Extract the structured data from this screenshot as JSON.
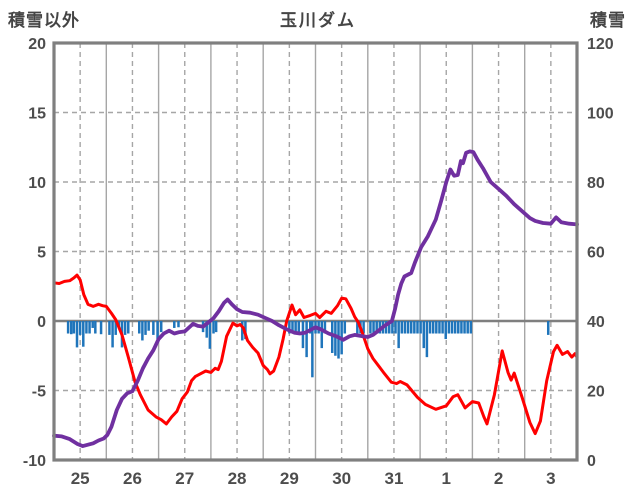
{
  "chart": {
    "title": "玉川ダム",
    "left_axis_label": "積雪以外",
    "right_axis_label": "積雪"
  },
  "chart_data": {
    "type": "line",
    "title": "玉川ダム",
    "left_axis": {
      "label": "積雪以外",
      "range": [
        -10,
        20
      ],
      "ticks": [
        20,
        15,
        10,
        5,
        0,
        -5,
        -10
      ]
    },
    "right_axis": {
      "label": "積雪",
      "range": [
        0,
        120
      ],
      "ticks": [
        120,
        100,
        80,
        60,
        40,
        20,
        0
      ]
    },
    "x_axis": {
      "labels": [
        "25",
        "26",
        "27",
        "28",
        "29",
        "30",
        "31",
        "1",
        "2",
        "3"
      ],
      "range": [
        0,
        10
      ]
    },
    "grid": {
      "solid_zero_line": true,
      "dashed_horizontal": [
        15,
        10,
        5,
        -5
      ],
      "solid_vertical_day_lines": true,
      "dashed_halfday_lines": true
    },
    "colors": {
      "temperature": "#ff0000",
      "snow_depth": "#7030a0",
      "precipitation": "#1f75bb",
      "frame": "#7f7f7f",
      "grid": "#a6a6a6",
      "text": "#4d4d4d"
    },
    "series": [
      {
        "name": "temperature",
        "axis": "left",
        "color": "#ff0000",
        "width": 3,
        "points": [
          [
            0,
            2.75
          ],
          [
            0.1,
            2.7
          ],
          [
            0.2,
            2.85
          ],
          [
            0.3,
            2.9
          ],
          [
            0.38,
            3.1
          ],
          [
            0.44,
            3.3
          ],
          [
            0.5,
            2.95
          ],
          [
            0.57,
            1.9
          ],
          [
            0.65,
            1.2
          ],
          [
            0.75,
            1.05
          ],
          [
            0.85,
            1.2
          ],
          [
            0.93,
            1.1
          ],
          [
            1.0,
            1.05
          ],
          [
            1.1,
            0.55
          ],
          [
            1.18,
            0.1
          ],
          [
            1.3,
            -1.0
          ],
          [
            1.42,
            -2.6
          ],
          [
            1.55,
            -4.4
          ],
          [
            1.65,
            -5.3
          ],
          [
            1.8,
            -6.4
          ],
          [
            1.95,
            -6.9
          ],
          [
            2.05,
            -7.1
          ],
          [
            2.15,
            -7.4
          ],
          [
            2.25,
            -6.9
          ],
          [
            2.35,
            -6.5
          ],
          [
            2.45,
            -5.6
          ],
          [
            2.55,
            -5.1
          ],
          [
            2.63,
            -4.3
          ],
          [
            2.7,
            -4.0
          ],
          [
            2.8,
            -3.8
          ],
          [
            2.9,
            -3.6
          ],
          [
            3.0,
            -3.7
          ],
          [
            3.08,
            -3.4
          ],
          [
            3.14,
            -3.5
          ],
          [
            3.2,
            -2.9
          ],
          [
            3.3,
            -1.1
          ],
          [
            3.42,
            -0.15
          ],
          [
            3.5,
            -0.35
          ],
          [
            3.56,
            -0.25
          ],
          [
            3.62,
            -0.5
          ],
          [
            3.7,
            -1.4
          ],
          [
            3.8,
            -1.9
          ],
          [
            3.9,
            -2.3
          ],
          [
            4.0,
            -3.2
          ],
          [
            4.08,
            -3.5
          ],
          [
            4.13,
            -3.8
          ],
          [
            4.2,
            -3.6
          ],
          [
            4.3,
            -2.6
          ],
          [
            4.38,
            -1.3
          ],
          [
            4.45,
            0.0
          ],
          [
            4.55,
            1.15
          ],
          [
            4.62,
            0.45
          ],
          [
            4.7,
            0.8
          ],
          [
            4.78,
            0.25
          ],
          [
            4.9,
            0.4
          ],
          [
            5.0,
            0.55
          ],
          [
            5.08,
            0.25
          ],
          [
            5.2,
            0.7
          ],
          [
            5.3,
            0.55
          ],
          [
            5.42,
            1.1
          ],
          [
            5.5,
            1.65
          ],
          [
            5.58,
            1.6
          ],
          [
            5.68,
            0.9
          ],
          [
            5.75,
            0.3
          ],
          [
            5.82,
            -0.1
          ],
          [
            5.9,
            -0.9
          ],
          [
            6.0,
            -2.0
          ],
          [
            6.1,
            -2.7
          ],
          [
            6.3,
            -3.7
          ],
          [
            6.45,
            -4.4
          ],
          [
            6.55,
            -4.5
          ],
          [
            6.62,
            -4.35
          ],
          [
            6.75,
            -4.6
          ],
          [
            6.95,
            -5.5
          ],
          [
            7.1,
            -6.0
          ],
          [
            7.3,
            -6.35
          ],
          [
            7.5,
            -6.1
          ],
          [
            7.63,
            -5.45
          ],
          [
            7.72,
            -5.3
          ],
          [
            7.86,
            -6.25
          ],
          [
            8.0,
            -5.8
          ],
          [
            8.12,
            -5.9
          ],
          [
            8.22,
            -6.9
          ],
          [
            8.28,
            -7.4
          ],
          [
            8.42,
            -5.3
          ],
          [
            8.57,
            -2.15
          ],
          [
            8.68,
            -3.7
          ],
          [
            8.74,
            -4.25
          ],
          [
            8.8,
            -3.75
          ],
          [
            8.95,
            -5.5
          ],
          [
            9.1,
            -7.3
          ],
          [
            9.2,
            -8.1
          ],
          [
            9.3,
            -7.2
          ],
          [
            9.42,
            -4.3
          ],
          [
            9.55,
            -2.2
          ],
          [
            9.62,
            -1.75
          ],
          [
            9.72,
            -2.4
          ],
          [
            9.82,
            -2.2
          ],
          [
            9.9,
            -2.6
          ],
          [
            9.96,
            -2.35
          ],
          [
            10.0,
            -2.6
          ]
        ]
      },
      {
        "name": "snow_depth",
        "axis": "right",
        "color": "#7030a0",
        "width": 3.8,
        "points": [
          [
            0,
            7.0
          ],
          [
            0.15,
            6.8
          ],
          [
            0.3,
            6.0
          ],
          [
            0.45,
            4.6
          ],
          [
            0.55,
            4.0
          ],
          [
            0.65,
            4.4
          ],
          [
            0.75,
            4.8
          ],
          [
            0.85,
            5.6
          ],
          [
            0.95,
            6.2
          ],
          [
            1.02,
            7.2
          ],
          [
            1.1,
            9.6
          ],
          [
            1.2,
            14.4
          ],
          [
            1.3,
            17.6
          ],
          [
            1.4,
            19.2
          ],
          [
            1.5,
            19.8
          ],
          [
            1.6,
            22.8
          ],
          [
            1.7,
            26.4
          ],
          [
            1.8,
            29.2
          ],
          [
            1.9,
            31.6
          ],
          [
            2.0,
            34.8
          ],
          [
            2.1,
            36.4
          ],
          [
            2.2,
            37.2
          ],
          [
            2.3,
            36.4
          ],
          [
            2.4,
            36.8
          ],
          [
            2.5,
            37.0
          ],
          [
            2.6,
            38.4
          ],
          [
            2.66,
            39.2
          ],
          [
            2.75,
            38.6
          ],
          [
            2.85,
            38.4
          ],
          [
            2.95,
            39.6
          ],
          [
            3.05,
            40.8
          ],
          [
            3.15,
            42.8
          ],
          [
            3.25,
            45.2
          ],
          [
            3.32,
            46.2
          ],
          [
            3.4,
            44.8
          ],
          [
            3.5,
            43.4
          ],
          [
            3.6,
            42.6
          ],
          [
            3.75,
            42.4
          ],
          [
            3.9,
            41.8
          ],
          [
            4.05,
            40.8
          ],
          [
            4.17,
            40.0
          ],
          [
            4.3,
            38.8
          ],
          [
            4.45,
            37.6
          ],
          [
            4.6,
            36.6
          ],
          [
            4.7,
            36.4
          ],
          [
            4.8,
            36.6
          ],
          [
            4.9,
            37.4
          ],
          [
            5.0,
            38.2
          ],
          [
            5.1,
            37.6
          ],
          [
            5.25,
            36.4
          ],
          [
            5.4,
            35.6
          ],
          [
            5.53,
            34.6
          ],
          [
            5.65,
            35.6
          ],
          [
            5.75,
            36.0
          ],
          [
            5.9,
            35.6
          ],
          [
            6.0,
            35.4
          ],
          [
            6.1,
            36.0
          ],
          [
            6.2,
            37.2
          ],
          [
            6.3,
            38.4
          ],
          [
            6.46,
            40.0
          ],
          [
            6.52,
            43.4
          ],
          [
            6.58,
            47.6
          ],
          [
            6.64,
            50.8
          ],
          [
            6.7,
            52.8
          ],
          [
            6.83,
            53.8
          ],
          [
            6.9,
            56.8
          ],
          [
            7.02,
            61.2
          ],
          [
            7.15,
            64.4
          ],
          [
            7.3,
            69.2
          ],
          [
            7.4,
            74.4
          ],
          [
            7.5,
            80.0
          ],
          [
            7.58,
            83.6
          ],
          [
            7.65,
            81.8
          ],
          [
            7.72,
            82.0
          ],
          [
            7.78,
            86.0
          ],
          [
            7.82,
            85.4
          ],
          [
            7.88,
            88.4
          ],
          [
            7.95,
            88.8
          ],
          [
            8.02,
            88.6
          ],
          [
            8.1,
            86.4
          ],
          [
            8.2,
            84.0
          ],
          [
            8.35,
            80.0
          ],
          [
            8.5,
            78.0
          ],
          [
            8.65,
            76.0
          ],
          [
            8.8,
            73.6
          ],
          [
            8.95,
            71.6
          ],
          [
            9.1,
            69.6
          ],
          [
            9.2,
            68.8
          ],
          [
            9.35,
            68.2
          ],
          [
            9.5,
            68.0
          ],
          [
            9.6,
            69.8
          ],
          [
            9.7,
            68.4
          ],
          [
            9.85,
            68.0
          ],
          [
            10.0,
            67.8
          ]
        ]
      }
    ],
    "bars": {
      "name": "precipitation",
      "axis": "left",
      "color": "#1f75bb",
      "note": "bars hang downward from the zero line; value = depth below 0",
      "data": [
        [
          0.27,
          0.9
        ],
        [
          0.33,
          0.95
        ],
        [
          0.38,
          0.9
        ],
        [
          0.44,
          1.9
        ],
        [
          0.5,
          1.0
        ],
        [
          0.56,
          1.85
        ],
        [
          0.62,
          0.9
        ],
        [
          0.68,
          0.9
        ],
        [
          0.74,
          0.5
        ],
        [
          0.79,
          0.9
        ],
        [
          0.9,
          0.95
        ],
        [
          1.06,
          1.0
        ],
        [
          1.12,
          1.9
        ],
        [
          1.18,
          1.0
        ],
        [
          1.24,
          0.5
        ],
        [
          1.3,
          1.9
        ],
        [
          1.36,
          1.0
        ],
        [
          1.42,
          0.9
        ],
        [
          1.63,
          0.9
        ],
        [
          1.69,
          1.4
        ],
        [
          1.75,
          1.0
        ],
        [
          1.81,
          0.7
        ],
        [
          1.9,
          1.0
        ],
        [
          1.98,
          1.3
        ],
        [
          2.05,
          0.8
        ],
        [
          2.3,
          0.5
        ],
        [
          2.38,
          0.45
        ],
        [
          2.85,
          0.8
        ],
        [
          2.92,
          1.2
        ],
        [
          2.98,
          2.0
        ],
        [
          3.05,
          0.9
        ],
        [
          3.1,
          0.8
        ],
        [
          3.6,
          1.4
        ],
        [
          3.66,
          1.3
        ],
        [
          4.5,
          0.9
        ],
        [
          4.56,
          0.9
        ],
        [
          4.62,
          0.9
        ],
        [
          4.68,
          0.9
        ],
        [
          4.76,
          1.95
        ],
        [
          4.83,
          2.6
        ],
        [
          4.9,
          0.9
        ],
        [
          4.94,
          4.05
        ],
        [
          5.0,
          0.9
        ],
        [
          5.06,
          0.9
        ],
        [
          5.12,
          1.95
        ],
        [
          5.18,
          0.9
        ],
        [
          5.32,
          2.3
        ],
        [
          5.38,
          2.5
        ],
        [
          5.44,
          2.7
        ],
        [
          5.5,
          2.4
        ],
        [
          5.56,
          0.9
        ],
        [
          5.8,
          0.9
        ],
        [
          5.86,
          0.9
        ],
        [
          5.92,
          0.9
        ],
        [
          6.05,
          0.9
        ],
        [
          6.11,
          0.9
        ],
        [
          6.17,
          0.9
        ],
        [
          6.23,
          0.9
        ],
        [
          6.29,
          0.9
        ],
        [
          6.35,
          0.9
        ],
        [
          6.41,
          0.9
        ],
        [
          6.47,
          0.9
        ],
        [
          6.53,
          0.9
        ],
        [
          6.59,
          1.95
        ],
        [
          6.65,
          0.9
        ],
        [
          6.71,
          0.9
        ],
        [
          6.77,
          0.9
        ],
        [
          6.83,
          0.9
        ],
        [
          6.89,
          0.9
        ],
        [
          6.95,
          0.9
        ],
        [
          7.01,
          0.9
        ],
        [
          7.07,
          1.95
        ],
        [
          7.13,
          2.6
        ],
        [
          7.19,
          0.9
        ],
        [
          7.25,
          0.9
        ],
        [
          7.31,
          0.9
        ],
        [
          7.37,
          0.9
        ],
        [
          7.43,
          0.9
        ],
        [
          7.49,
          1.3
        ],
        [
          7.55,
          0.9
        ],
        [
          7.61,
          0.9
        ],
        [
          7.67,
          0.9
        ],
        [
          7.73,
          0.9
        ],
        [
          7.79,
          0.9
        ],
        [
          7.85,
          0.9
        ],
        [
          7.91,
          0.9
        ],
        [
          7.97,
          0.9
        ],
        [
          9.45,
          1.0
        ]
      ]
    }
  }
}
